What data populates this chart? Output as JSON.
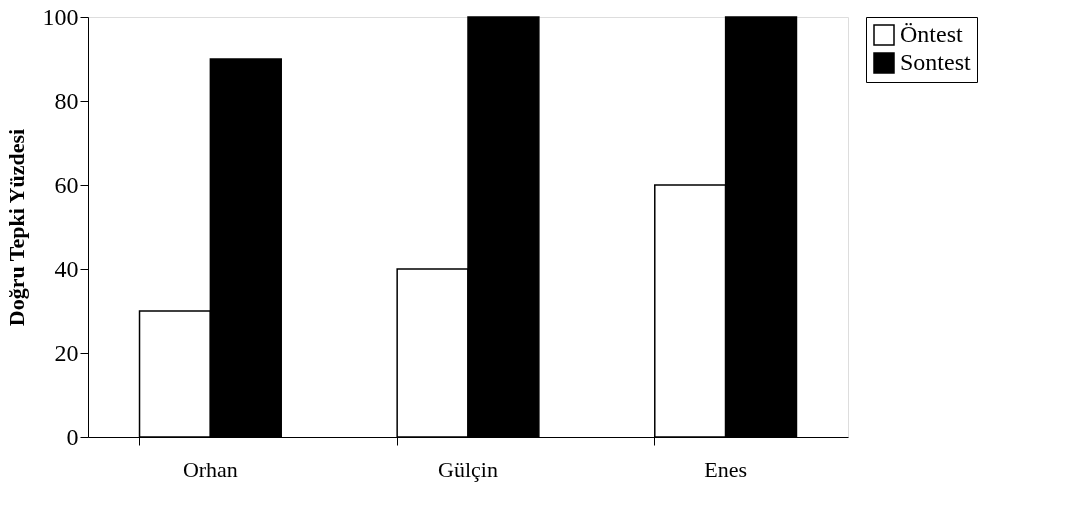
{
  "chart_data": {
    "type": "bar",
    "ylabel": "Doğru Tepki Yüzdesi",
    "categories": [
      "Orhan",
      "Gülçin",
      "Enes"
    ],
    "series": [
      {
        "name": "Öntest",
        "color": "#ffffff",
        "values": [
          30,
          40,
          60
        ]
      },
      {
        "name": "Sontest",
        "color": "#000000",
        "values": [
          90,
          100,
          100
        ]
      }
    ],
    "ylim": [
      0,
      100
    ],
    "yticks": [
      0,
      20,
      40,
      60,
      80,
      100
    ],
    "grid": false,
    "legend": "right"
  }
}
